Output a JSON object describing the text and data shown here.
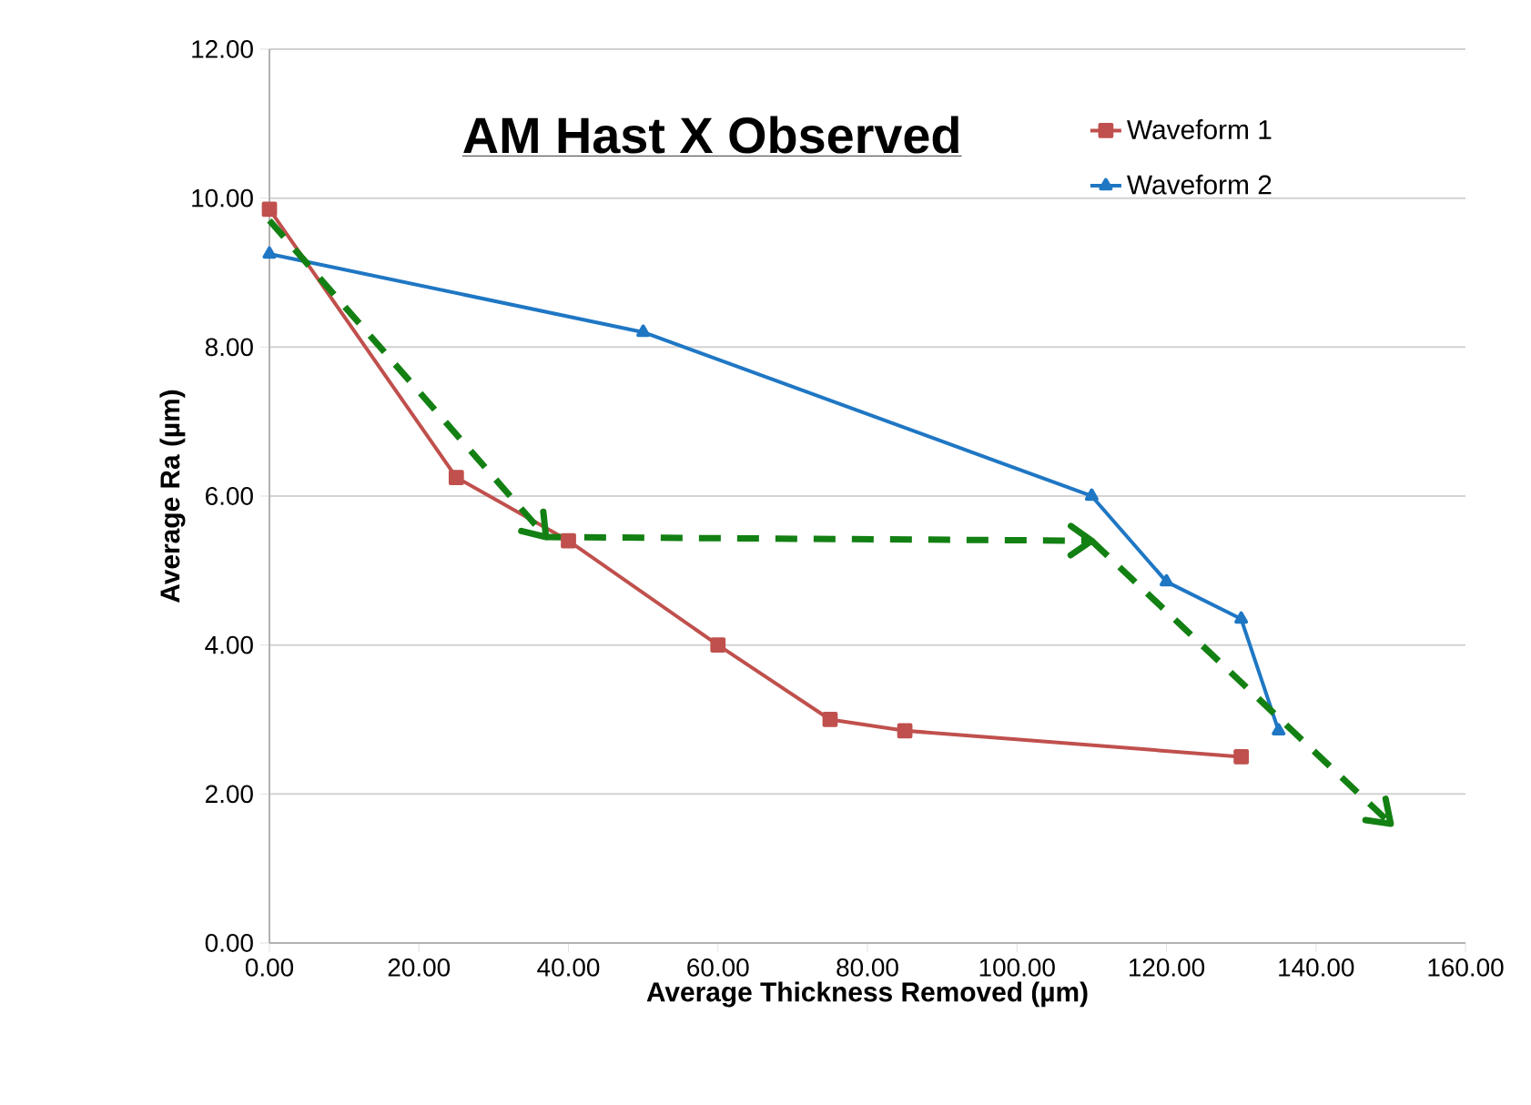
{
  "chart_data": {
    "type": "line",
    "title": "AM Hast X Observed",
    "xlabel": "Average Thickness Removed (µm)",
    "ylabel": "Average Ra (µm)",
    "xlim": [
      0,
      160
    ],
    "ylim": [
      0,
      12
    ],
    "xticks": [
      {
        "value": 0,
        "label": "0.00"
      },
      {
        "value": 20,
        "label": "20.00"
      },
      {
        "value": 40,
        "label": "40.00"
      },
      {
        "value": 60,
        "label": "60.00"
      },
      {
        "value": 80,
        "label": "80.00"
      },
      {
        "value": 100,
        "label": "100.00"
      },
      {
        "value": 120,
        "label": "120.00"
      },
      {
        "value": 140,
        "label": "140.00"
      },
      {
        "value": 160,
        "label": "160.00"
      }
    ],
    "yticks": [
      {
        "value": 0,
        "label": "0.00"
      },
      {
        "value": 2,
        "label": "2.00"
      },
      {
        "value": 4,
        "label": "4.00"
      },
      {
        "value": 6,
        "label": "6.00"
      },
      {
        "value": 8,
        "label": "8.00"
      },
      {
        "value": 10,
        "label": "10.00"
      },
      {
        "value": 12,
        "label": "12.00"
      }
    ],
    "grid": "y",
    "legend": "top right",
    "series": [
      {
        "name": "Waveform 1",
        "color": "#c0504d",
        "marker": "square",
        "x": [
          0,
          25,
          40,
          60,
          75,
          85,
          130
        ],
        "values": [
          9.85,
          6.25,
          5.4,
          4.0,
          3.0,
          2.85,
          2.5
        ]
      },
      {
        "name": "Waveform 2",
        "color": "#1f77c4",
        "marker": "triangle",
        "x": [
          0,
          50,
          110,
          120,
          130,
          135
        ],
        "values": [
          9.25,
          8.2,
          6.0,
          4.85,
          4.35,
          2.85
        ]
      },
      {
        "type": "line",
        "color": "#138013",
        "marker": "none",
        "line_style": "dashed",
        "x": [
          0,
          37
        ],
        "values": [
          9.7,
          5.45
        ]
      },
      {
        "type": "line",
        "color": "#138013",
        "marker": "none",
        "line_style": "dashed",
        "x": [
          37,
          110
        ],
        "values": [
          5.45,
          5.4
        ]
      },
      {
        "type": "line",
        "color": "#138013",
        "marker": "none",
        "line_style": "dashed",
        "x": [
          110,
          150
        ],
        "values": [
          5.4,
          1.6
        ]
      }
    ]
  }
}
